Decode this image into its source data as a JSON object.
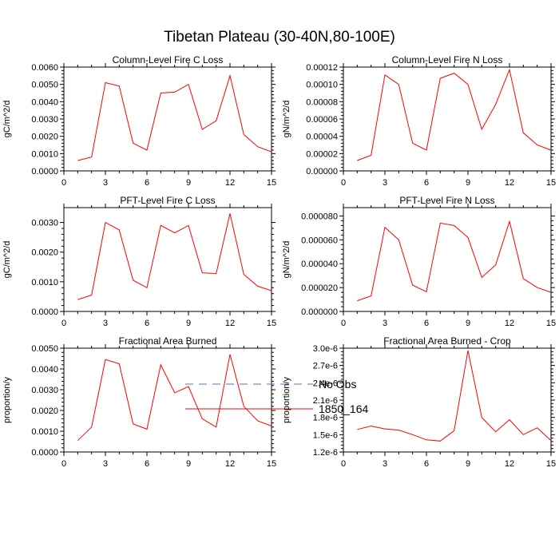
{
  "figure": {
    "title": "Tibetan Plateau (30-40N,80-100E)",
    "series_color": "#ff0000",
    "obs_color": "#6a6ab0"
  },
  "legend": {
    "items": [
      {
        "label": "No Obs",
        "style": "dashed",
        "color": "#6a6ab0"
      },
      {
        "label": "1850_164",
        "style": "solid",
        "color": "#ff0000"
      }
    ]
  },
  "chart_data": [
    {
      "type": "line",
      "title": "Column-Level Fire C Loss",
      "ylabel": "gC/m^2/d",
      "xlim": [
        0,
        15
      ],
      "xticks": [
        0,
        3,
        6,
        9,
        12,
        15
      ],
      "ylim": [
        0,
        0.006
      ],
      "yticks": [
        "0.0000",
        "0.0010",
        "0.0020",
        "0.0030",
        "0.0040",
        "0.0050",
        "0.0060"
      ],
      "x": [
        1,
        2,
        3,
        4,
        5,
        6,
        7,
        8,
        9,
        10,
        11,
        12,
        13,
        14,
        15
      ],
      "series": [
        {
          "name": "1850_164",
          "values": [
            0.0006,
            0.0008,
            0.0051,
            0.0049,
            0.0016,
            0.0012,
            0.0045,
            0.00455,
            0.005,
            0.0024,
            0.0029,
            0.0055,
            0.0021,
            0.0014,
            0.0011
          ]
        }
      ]
    },
    {
      "type": "line",
      "title": "Column-Level Fire N Loss",
      "ylabel": "gN/m^2/d",
      "xlim": [
        0,
        15
      ],
      "xticks": [
        0,
        3,
        6,
        9,
        12,
        15
      ],
      "ylim": [
        0,
        0.00012
      ],
      "yticks": [
        "0.00000",
        "0.00002",
        "0.00004",
        "0.00006",
        "0.00008",
        "0.00010",
        "0.00012"
      ],
      "x": [
        1,
        2,
        3,
        4,
        5,
        6,
        7,
        8,
        9,
        10,
        11,
        12,
        13,
        14,
        15
      ],
      "series": [
        {
          "name": "1850_164",
          "values": [
            1.2e-05,
            1.8e-05,
            0.000111,
            0.0001,
            3.2e-05,
            2.4e-05,
            0.000107,
            0.000113,
            0.0001,
            4.8e-05,
            7.7e-05,
            0.000117,
            4.4e-05,
            3e-05,
            2.4e-05
          ]
        }
      ]
    },
    {
      "type": "line",
      "title": "PFT-Level Fire C Loss",
      "ylabel": "gC/m^2/d",
      "xlim": [
        0,
        15
      ],
      "xticks": [
        0,
        3,
        6,
        9,
        12,
        15
      ],
      "ylim": [
        0,
        0.0035
      ],
      "yticks": [
        "0.0000",
        "0.0010",
        "0.0020",
        "0.0030"
      ],
      "ytick_values": [
        0,
        0.001,
        0.002,
        0.003
      ],
      "x": [
        1,
        2,
        3,
        4,
        5,
        6,
        7,
        8,
        9,
        10,
        11,
        12,
        13,
        14,
        15
      ],
      "series": [
        {
          "name": "1850_164",
          "values": [
            0.0004,
            0.00055,
            0.003,
            0.00275,
            0.00105,
            0.0008,
            0.0029,
            0.00265,
            0.0029,
            0.0013,
            0.00128,
            0.0033,
            0.00125,
            0.00085,
            0.0007
          ]
        }
      ]
    },
    {
      "type": "line",
      "title": "PFT-Level Fire N Loss",
      "ylabel": "gN/m^2/d",
      "xlim": [
        0,
        15
      ],
      "xticks": [
        0,
        3,
        6,
        9,
        12,
        15
      ],
      "ylim": [
        0,
        8.7e-05
      ],
      "yticks": [
        "0.000000",
        "0.000020",
        "0.000040",
        "0.000060",
        "0.000080"
      ],
      "ytick_values": [
        0,
        2e-05,
        4e-05,
        6e-05,
        8e-05
      ],
      "x": [
        1,
        2,
        3,
        4,
        5,
        6,
        7,
        8,
        9,
        10,
        11,
        12,
        13,
        14,
        15
      ],
      "series": [
        {
          "name": "1850_164",
          "values": [
            9e-06,
            1.3e-05,
            7.05e-05,
            6e-05,
            2.2e-05,
            1.65e-05,
            7.4e-05,
            7.2e-05,
            6.2e-05,
            2.85e-05,
            3.9e-05,
            7.55e-05,
            2.75e-05,
            2e-05,
            1.6e-05
          ]
        }
      ]
    },
    {
      "type": "line",
      "title": "Fractional Area Burned",
      "ylabel": "proportion/y",
      "xlim": [
        0,
        15
      ],
      "xticks": [
        0,
        3,
        6,
        9,
        12,
        15
      ],
      "ylim": [
        0,
        0.005
      ],
      "yticks": [
        "0.0000",
        "0.0010",
        "0.0020",
        "0.0030",
        "0.0040",
        "0.0050"
      ],
      "x": [
        1,
        2,
        3,
        4,
        5,
        6,
        7,
        8,
        9,
        10,
        11,
        12,
        13,
        14,
        15
      ],
      "series": [
        {
          "name": "1850_164",
          "values": [
            0.00055,
            0.0012,
            0.00445,
            0.00425,
            0.00135,
            0.0011,
            0.0042,
            0.00285,
            0.00315,
            0.0016,
            0.0012,
            0.0047,
            0.0022,
            0.0015,
            0.00125
          ]
        }
      ]
    },
    {
      "type": "line",
      "title": "Fractional Area Burned - Crop",
      "ylabel": "proportion/y",
      "xlim": [
        0,
        15
      ],
      "xticks": [
        0,
        3,
        6,
        9,
        12,
        15
      ],
      "ylim": [
        1.2e-06,
        3e-06
      ],
      "yticks": [
        "1.2e-6",
        "1.5e-6",
        "1.8e-6",
        "2.1e-6",
        "2.4e-6",
        "2.7e-6",
        "3.0e-6"
      ],
      "x": [
        1,
        2,
        3,
        4,
        5,
        6,
        7,
        8,
        9,
        10,
        11,
        12,
        13,
        14,
        15
      ],
      "series": [
        {
          "name": "1850_164",
          "values": [
            1.59e-06,
            1.65e-06,
            1.6e-06,
            1.58e-06,
            1.5e-06,
            1.41e-06,
            1.39e-06,
            1.57e-06,
            2.96e-06,
            1.8e-06,
            1.55e-06,
            1.76e-06,
            1.5e-06,
            1.62e-06,
            1.4e-06
          ]
        }
      ]
    }
  ]
}
